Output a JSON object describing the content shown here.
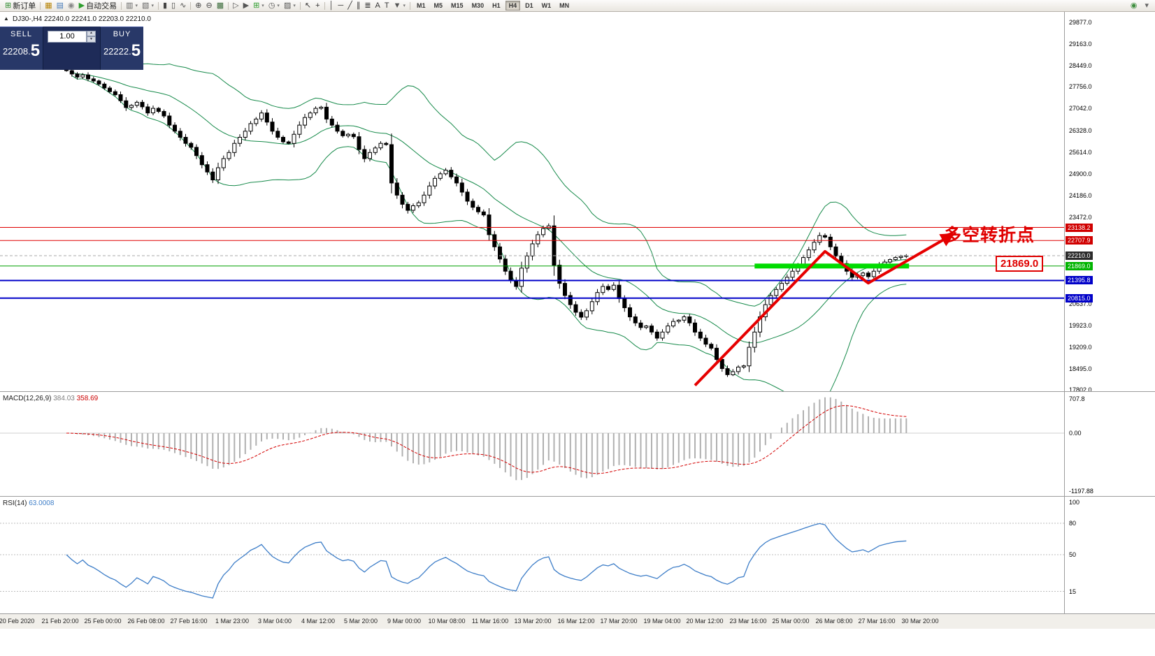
{
  "toolbar": {
    "active_timeframe": "H4",
    "items": [
      {
        "name": "new-order-button",
        "glyph": "⊞",
        "color": "#2e8b2e",
        "label": "新订单"
      },
      {
        "type": "sep"
      },
      {
        "name": "market-watch-button",
        "glyph": "▦",
        "color": "#b8860b"
      },
      {
        "name": "data-window-button",
        "glyph": "▤",
        "color": "#4a7ebb"
      },
      {
        "name": "navigator-button",
        "glyph": "◉",
        "color": "#888888"
      },
      {
        "name": "auto-trading-button",
        "glyph": "▶",
        "color": "#2e9e2e",
        "label": "自动交易"
      },
      {
        "type": "sep"
      },
      {
        "name": "new-chart-button",
        "glyph": "▥",
        "color": "#666666",
        "caret": true
      },
      {
        "name": "profiles-button",
        "glyph": "▧",
        "color": "#666666",
        "caret": true
      },
      {
        "type": "sep"
      },
      {
        "name": "bar-chart-button",
        "glyph": "▮",
        "color": "#444444"
      },
      {
        "name": "candlestick-chart-button",
        "glyph": "▯",
        "color": "#444444"
      },
      {
        "name": "line-chart-button",
        "glyph": "∿",
        "color": "#444444"
      },
      {
        "type": "sep"
      },
      {
        "name": "zoom-in-button",
        "glyph": "⊕",
        "color": "#444444"
      },
      {
        "name": "zoom-out-button",
        "glyph": "⊖",
        "color": "#444444"
      },
      {
        "name": "tile-windows-button",
        "glyph": "▩",
        "color": "#3e6e3e"
      },
      {
        "type": "sep"
      },
      {
        "name": "chart-shift-button",
        "glyph": "▷",
        "color": "#555555"
      },
      {
        "name": "auto-scroll-button",
        "glyph": "▶",
        "color": "#555555"
      },
      {
        "name": "indicators-button",
        "glyph": "⊞",
        "color": "#2e9e2e",
        "caret": true
      },
      {
        "name": "periods-button",
        "glyph": "◷",
        "color": "#555555",
        "caret": true
      },
      {
        "name": "templates-button",
        "glyph": "▨",
        "color": "#555555",
        "caret": true
      },
      {
        "type": "sep"
      },
      {
        "name": "cursor-button",
        "glyph": "↖",
        "color": "#333333"
      },
      {
        "name": "crosshair-button",
        "glyph": "+",
        "color": "#333333"
      },
      {
        "type": "sep"
      },
      {
        "name": "vertical-line-button",
        "glyph": "│",
        "color": "#333333"
      },
      {
        "name": "horizontal-line-button",
        "glyph": "─",
        "color": "#333333"
      },
      {
        "name": "trendline-button",
        "glyph": "╱",
        "color": "#333333"
      },
      {
        "name": "channel-button",
        "glyph": "∥",
        "color": "#333333"
      },
      {
        "name": "fibonacci-button",
        "glyph": "≣",
        "color": "#333333"
      },
      {
        "name": "text-button",
        "glyph": "A",
        "color": "#333333"
      },
      {
        "name": "text-label-button",
        "glyph": "T",
        "color": "#333333"
      },
      {
        "name": "shapes-button",
        "glyph": "▼",
        "color": "#555555",
        "caret": true
      },
      {
        "type": "sep"
      },
      {
        "type": "tf",
        "label": "M1"
      },
      {
        "type": "tf",
        "label": "M5"
      },
      {
        "type": "tf",
        "label": "M15"
      },
      {
        "type": "tf",
        "label": "M30"
      },
      {
        "type": "tf",
        "label": "H1"
      },
      {
        "type": "tf",
        "label": "H4"
      },
      {
        "type": "tf",
        "label": "D1"
      },
      {
        "type": "tf",
        "label": "W1"
      },
      {
        "type": "tf",
        "label": "MN"
      }
    ],
    "right_items": [
      {
        "name": "toolbar-right-icon-1",
        "glyph": "◉",
        "color": "#3e8e3e"
      },
      {
        "name": "toolbar-right-icon-2",
        "glyph": "▾",
        "color": "#666666"
      }
    ]
  },
  "chart": {
    "title": "DJ30-,H4 22240.0 22241.0 22203.0 22210.0"
  },
  "trade_panel": {
    "sell_label": "SELL",
    "buy_label": "BUY",
    "volume": "1.00",
    "sell_price_small": "22208.",
    "sell_price_large": "5",
    "buy_price_small": "22222.",
    "buy_price_large": "5"
  },
  "annotations": {
    "turning_point": "多空转折点",
    "level_box": "21869.0"
  },
  "price_axis": {
    "ticks": [
      "29877.0",
      "29163.0",
      "28449.0",
      "27756.0",
      "27042.0",
      "26328.0",
      "25614.0",
      "24900.0",
      "24186.0",
      "23472.0",
      "20637.0",
      "19923.0",
      "19209.0",
      "18495.0",
      "17802.0"
    ]
  },
  "chart_data": {
    "type": "candlestick",
    "symbol": "DJ30-",
    "timeframe": "H4",
    "price_range": [
      17802,
      29877
    ],
    "closes": [
      28290,
      28180,
      28080,
      28150,
      28020,
      27950,
      27850,
      27720,
      27600,
      27500,
      27300,
      27080,
      27150,
      27250,
      27100,
      26900,
      27050,
      26950,
      26800,
      26500,
      26300,
      26100,
      25900,
      25770,
      25500,
      25200,
      24960,
      24700,
      25100,
      25400,
      25600,
      25900,
      26100,
      26300,
      26550,
      26700,
      26900,
      26600,
      26300,
      26100,
      25950,
      25900,
      26200,
      26500,
      26750,
      26900,
      27050,
      27090,
      26700,
      26500,
      26300,
      26150,
      26200,
      26120,
      25700,
      25400,
      25600,
      25750,
      25900,
      25860,
      24600,
      24200,
      23900,
      23700,
      23850,
      23950,
      24200,
      24500,
      24750,
      24900,
      25020,
      24800,
      24600,
      24300,
      24000,
      23800,
      23650,
      23550,
      22900,
      22500,
      22100,
      21700,
      21400,
      21200,
      21800,
      22200,
      22600,
      22900,
      23100,
      23190,
      21900,
      21300,
      20900,
      20600,
      20350,
      20190,
      20400,
      20700,
      21000,
      21200,
      21100,
      21240,
      20800,
      20500,
      20200,
      20000,
      19850,
      19900,
      19700,
      19500,
      19700,
      19900,
      20050,
      20090,
      20200,
      20000,
      19700,
      19500,
      19300,
      19170,
      18800,
      18500,
      18300,
      18400,
      18550,
      18590,
      19200,
      19700,
      20200,
      20600,
      20900,
      21100,
      21300,
      21500,
      21700,
      21900,
      22150,
      22400,
      22650,
      22870,
      22820,
      22500,
      22200,
      21950,
      21700,
      21500,
      21560,
      21640,
      21520,
      21700,
      21900,
      22000,
      22080,
      22150,
      22190,
      22210
    ],
    "overlays": {
      "bollinger": {
        "period": 20,
        "deviation": 2
      }
    },
    "levels": [
      {
        "label": "23138.2",
        "price": 23138.2,
        "style": "solid",
        "width": 1,
        "color": "#E00000",
        "badge": "#D00000"
      },
      {
        "label": "22707.9",
        "price": 22707.9,
        "style": "solid",
        "width": 1,
        "color": "#E00000",
        "badge": "#D00000"
      },
      {
        "label": "22210.0",
        "price": 22210.0,
        "style": "dashed",
        "width": 1,
        "color": "#a8a8a8",
        "badge": "#2b2b2b"
      },
      {
        "label": "21869.0",
        "price": 21869.0,
        "style": "solid",
        "width": 1,
        "color": "#00A000",
        "badge": "#00B400"
      },
      {
        "label": "21395.8",
        "price": 21395.8,
        "style": "solid",
        "width": 2,
        "color": "#0000C8",
        "badge": "#0000C8"
      },
      {
        "label": "20815.0",
        "price": 20815.0,
        "style": "solid",
        "width": 2,
        "color": "#0000C8",
        "badge": "#0000C8"
      }
    ],
    "green_zone": {
      "price": 21869.0,
      "from_i": 127,
      "to_i": 155.5,
      "thickness": 7,
      "color": "#00DC00"
    },
    "trend_arrow": {
      "color": "#E60000",
      "width": 4,
      "anchors": [
        {
          "i": 116,
          "price": 17950
        },
        {
          "i": 140,
          "price": 22350
        },
        {
          "i": 148,
          "price": 21310
        },
        {
          "i": 163.5,
          "price": 22900
        }
      ]
    },
    "colors": {
      "bollinger": "#168a4a",
      "candle_up": "#ffffff",
      "candle_down": "#000000",
      "macd_hist": "#b0b0b0",
      "macd_signal": "#d40000",
      "rsi": "#3e7ec8"
    },
    "macd": {
      "fast": 12,
      "slow": 26,
      "signal": 9,
      "display_main": 384.03,
      "display_signal": 358.69,
      "scale_max": 707.8,
      "scale_min": -1197.88
    },
    "rsi": {
      "period": 14,
      "display": 63.0008,
      "levels": [
        100,
        80,
        50,
        15
      ]
    }
  },
  "macd_panel": {
    "name": "MACD(12,26,9)",
    "value_main": "384.03",
    "value_signal": "358.69",
    "scale": [
      "707.8",
      "0.00",
      "-1197.88"
    ]
  },
  "rsi_panel": {
    "name": "RSI(14)",
    "value": "63.0008",
    "scale": [
      "100",
      "80",
      "50",
      "15"
    ]
  },
  "time_axis": {
    "labels": [
      "20 Feb 2020",
      "21 Feb 20:00",
      "25 Feb 00:00",
      "26 Feb 08:00",
      "27 Feb 16:00",
      "1 Mar 23:00",
      "3 Mar 04:00",
      "4 Mar 12:00",
      "5 Mar 20:00",
      "9 Mar 00:00",
      "10 Mar 08:00",
      "11 Mar 16:00",
      "13 Mar 20:00",
      "16 Mar 12:00",
      "17 Mar 20:00",
      "19 Mar 04:00",
      "20 Mar 12:00",
      "23 Mar 16:00",
      "25 Mar 00:00",
      "26 Mar 08:00",
      "27 Mar 16:00",
      "30 Mar 20:00"
    ]
  },
  "icons": {
    "collapse": "▲",
    "spin_up": "▲",
    "spin_down": "▼"
  }
}
